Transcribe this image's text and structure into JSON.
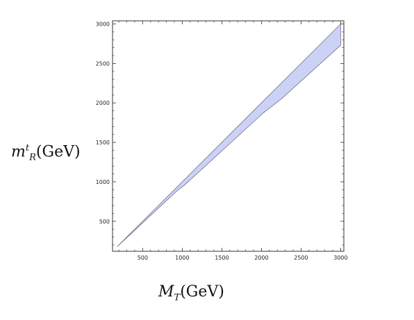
{
  "chart_data": {
    "type": "area",
    "title": "",
    "xlabel": {
      "base": "M",
      "sub": "T",
      "unit": "(GeV)"
    },
    "ylabel": {
      "base": "m",
      "sup": "t",
      "sub": "R",
      "unit": "(GeV)"
    },
    "xlim": [
      120,
      3040
    ],
    "ylim": [
      120,
      3040
    ],
    "x_ticks": [
      500,
      1000,
      1500,
      2000,
      2500,
      3000
    ],
    "y_ticks": [
      500,
      1000,
      1500,
      2000,
      2500,
      3000
    ],
    "grid": false,
    "legend": "none",
    "series": [
      {
        "fill_color": "#ccd2f5",
        "edge_color": "#6e6e8c",
        "upper": [
          [
            180,
            180
          ],
          [
            1000,
            1000
          ],
          [
            2000,
            2000
          ],
          [
            3000,
            3000
          ]
        ],
        "lower": [
          [
            180,
            180
          ],
          [
            950,
            900
          ],
          [
            1020,
            950
          ],
          [
            2020,
            1870
          ],
          [
            2250,
            2050
          ],
          [
            3000,
            2730
          ]
        ]
      }
    ]
  }
}
